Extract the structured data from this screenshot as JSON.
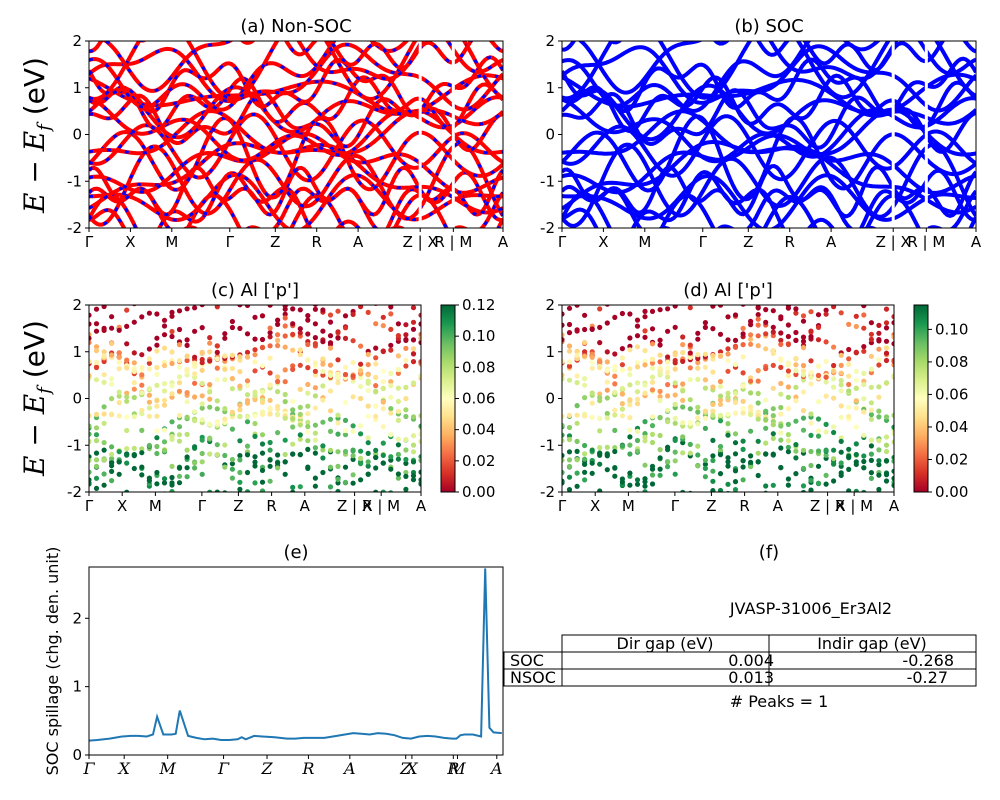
{
  "colors": {
    "nonsoc_line": "#ff0000",
    "nonsoc_dash": "#0000ff",
    "soc_line": "#0000ff",
    "spillage_line": "#1f77b4",
    "colormap": "RdYlGn"
  },
  "kpath_labels": [
    "Γ",
    "X",
    "M",
    "Γ",
    "Z",
    "R",
    "A",
    "Z | X",
    "R | M",
    "A"
  ],
  "kpath_labels_cd": [
    "Γ",
    "X",
    "M",
    "Γ",
    "Z",
    "R",
    "A",
    "Z | X",
    "R | M",
    "A"
  ],
  "kpath_labels_e": [
    "Γ",
    "X",
    "M",
    "Γ",
    "Z",
    "R",
    "A",
    "Z",
    "X",
    "R",
    "M",
    "A"
  ],
  "ylabel_main": "E − E",
  "ylabel_sub": "f",
  "ylabel_unit": " (eV)",
  "chart_data": [
    {
      "id": "a",
      "type": "line",
      "title": "(a) Non-SOC",
      "ylim": [
        -2,
        2
      ],
      "yticks": [
        -2,
        -1,
        0,
        1,
        2
      ],
      "series_style": "red solid with blue dashes",
      "band_count_in_window": 22
    },
    {
      "id": "b",
      "type": "line",
      "title": "(b) SOC",
      "ylim": [
        -2,
        2
      ],
      "yticks": [
        -2,
        -1,
        0,
        1,
        2
      ],
      "series_style": "blue solid",
      "band_count_in_window": 22
    },
    {
      "id": "c",
      "type": "scatter",
      "title": "(c)  Al ['p']",
      "ylim": [
        -2,
        2
      ],
      "yticks": [
        -2,
        -1,
        0,
        1,
        2
      ],
      "colorbar": {
        "min": 0.0,
        "max": 0.12,
        "ticks": [
          "0.00",
          "0.02",
          "0.04",
          "0.06",
          "0.08",
          "0.10",
          "0.12"
        ]
      }
    },
    {
      "id": "d",
      "type": "scatter",
      "title": "(d) Al ['p']",
      "ylim": [
        -2,
        2
      ],
      "yticks": [
        -2,
        -1,
        0,
        1,
        2
      ],
      "colorbar": {
        "min": 0.0,
        "max": 0.115,
        "ticks": [
          "0.00",
          "0.02",
          "0.04",
          "0.06",
          "0.08",
          "0.10"
        ]
      }
    },
    {
      "id": "e",
      "type": "line",
      "title": "(e)",
      "ylabel": "SOC spillage (chg. den. unit)",
      "ylim": [
        0,
        2.75
      ],
      "yticks": [
        0,
        1,
        2
      ],
      "x": [
        0,
        0.02,
        0.05,
        0.08,
        0.1,
        0.12,
        0.14,
        0.155,
        0.165,
        0.18,
        0.2,
        0.21,
        0.22,
        0.24,
        0.26,
        0.28,
        0.3,
        0.32,
        0.34,
        0.36,
        0.37,
        0.38,
        0.4,
        0.42,
        0.45,
        0.48,
        0.5,
        0.52,
        0.55,
        0.57,
        0.6,
        0.62,
        0.64,
        0.66,
        0.68,
        0.7,
        0.72,
        0.74,
        0.76,
        0.78,
        0.8,
        0.82,
        0.84,
        0.86,
        0.88,
        0.89,
        0.9,
        0.91,
        0.93,
        0.95,
        0.96,
        0.97,
        0.98,
        1.0
      ],
      "values": [
        0.21,
        0.22,
        0.24,
        0.27,
        0.28,
        0.28,
        0.27,
        0.3,
        0.56,
        0.3,
        0.3,
        0.31,
        0.65,
        0.28,
        0.25,
        0.23,
        0.24,
        0.22,
        0.22,
        0.23,
        0.26,
        0.23,
        0.28,
        0.27,
        0.26,
        0.24,
        0.24,
        0.25,
        0.25,
        0.25,
        0.28,
        0.3,
        0.32,
        0.31,
        0.3,
        0.32,
        0.31,
        0.29,
        0.25,
        0.24,
        0.27,
        0.28,
        0.27,
        0.25,
        0.24,
        0.24,
        0.29,
        0.3,
        0.3,
        0.27,
        2.73,
        0.4,
        0.33,
        0.32
      ]
    }
  ],
  "panel_f": {
    "title": "(f)",
    "material": "JVASP-31006_Er3Al2",
    "col_labels": [
      "Dir gap (eV)",
      "Indir gap (eV)"
    ],
    "rows": [
      {
        "label": "SOC",
        "dir": "0.004",
        "indir": "-0.268"
      },
      {
        "label": "NSOC",
        "dir": "0.013",
        "indir": "-0.27"
      }
    ],
    "peaks": "# Peaks = 1"
  }
}
